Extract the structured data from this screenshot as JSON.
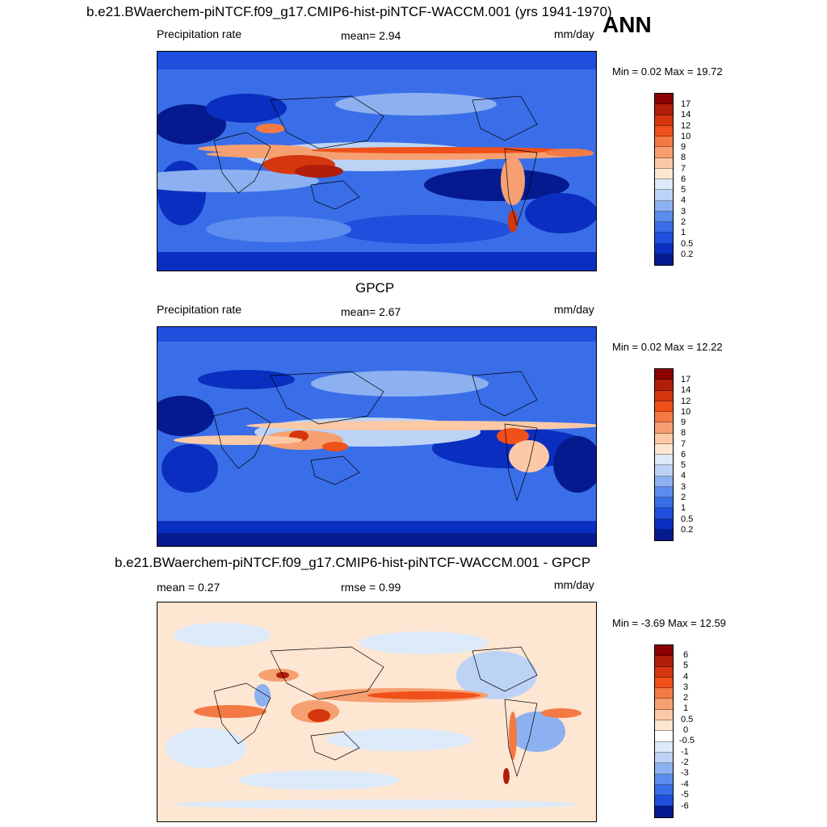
{
  "header": {
    "title": "b.e21.BWaerchem-piNTCF.f09_g17.CMIP6-hist-piNTCF-WACCM.001 (yrs 1941-1970)",
    "season": "ANN"
  },
  "panels": [
    {
      "id": "model",
      "left_label": "Precipitation rate",
      "center_label": "mean=   2.94",
      "right_label": "mm/day",
      "minmax": "Min =   0.02 Max =  19.72",
      "colorbar_labels": [
        "17",
        "14",
        "12",
        "10",
        "9",
        "8",
        "7",
        "6",
        "5",
        "4",
        "3",
        "2",
        "1",
        "0.5",
        "0.2"
      ],
      "colorbar_colors": [
        "#8b0000",
        "#b01e0a",
        "#d4360e",
        "#f0501a",
        "#f47a45",
        "#f6a072",
        "#fbc9a6",
        "#fde6d2",
        "#dceaf9",
        "#bcd3f6",
        "#8db1f0",
        "#5c8cee",
        "#3a6ee8",
        "#1f4fdc",
        "#0a2fc0",
        "#051a8f"
      ]
    },
    {
      "id": "obs",
      "subtitle": "GPCP",
      "left_label": "Precipitation rate",
      "center_label": "mean=   2.67",
      "right_label": "mm/day",
      "minmax": "Min =   0.02 Max =  12.22",
      "colorbar_labels": [
        "17",
        "14",
        "12",
        "10",
        "9",
        "8",
        "7",
        "6",
        "5",
        "4",
        "3",
        "2",
        "1",
        "0.5",
        "0.2"
      ],
      "colorbar_colors": [
        "#8b0000",
        "#b01e0a",
        "#d4360e",
        "#f0501a",
        "#f47a45",
        "#f6a072",
        "#fbc9a6",
        "#fde6d2",
        "#dceaf9",
        "#bcd3f6",
        "#8db1f0",
        "#5c8cee",
        "#3a6ee8",
        "#1f4fdc",
        "#0a2fc0",
        "#051a8f"
      ]
    },
    {
      "id": "diff",
      "subtitle": "b.e21.BWaerchem-piNTCF.f09_g17.CMIP6-hist-piNTCF-WACCM.001 - GPCP",
      "left_label": "mean =   0.27",
      "center_label": "rmse =   0.99",
      "right_label": "mm/day",
      "minmax": "Min =  -3.69 Max =  12.59",
      "colorbar_labels": [
        "6",
        "5",
        "4",
        "3",
        "2",
        "1",
        "0.5",
        "0",
        "-0.5",
        "-1",
        "-2",
        "-3",
        "-4",
        "-5",
        "-6"
      ],
      "colorbar_colors": [
        "#8b0000",
        "#b01e0a",
        "#d4360e",
        "#f0501a",
        "#f47a45",
        "#f6a072",
        "#fbc9a6",
        "#fde6d2",
        "#ffffff",
        "#dceaf9",
        "#bcd3f6",
        "#8db1f0",
        "#5c8cee",
        "#3a6ee8",
        "#1f4fdc",
        "#051a8f"
      ]
    }
  ]
}
